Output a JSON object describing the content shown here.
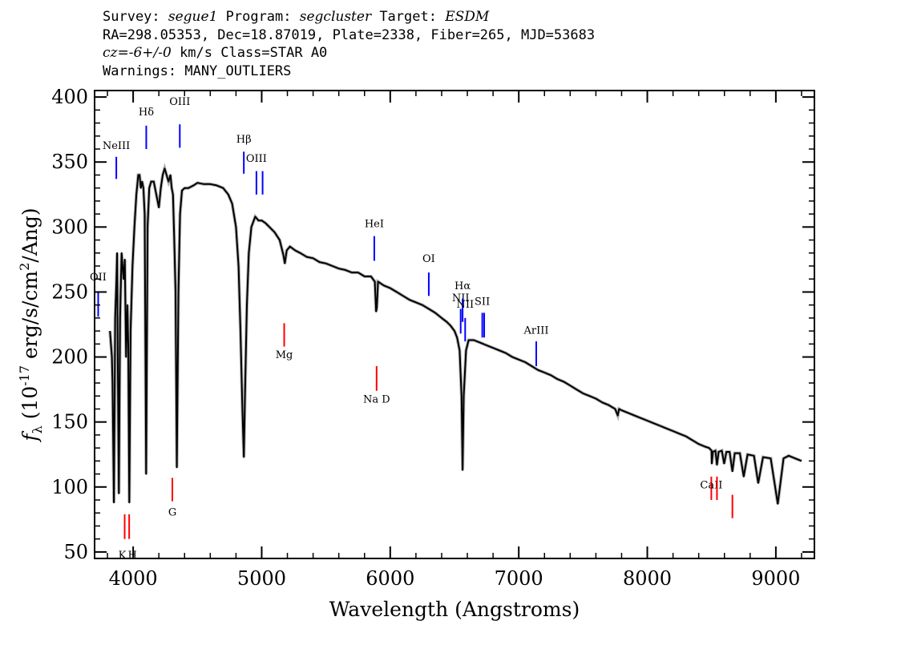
{
  "header": {
    "survey_prefix": "Survey: ",
    "survey": "segue1",
    "program_prefix": " Program: ",
    "program": "segcluster",
    "target_prefix": " Target: ",
    "target": "ESDM",
    "line2": "RA=298.05353, Dec=18.87019, Plate=2338, Fiber=265, MJD=53683",
    "cz_value": "cz=-6+/-0",
    "cz_rest": " km/s Class=STAR A0",
    "warnings": "Warnings: MANY_OUTLIERS"
  },
  "chart_data": {
    "type": "line",
    "xlabel": "Wavelength (Angstroms)",
    "ylabel": "f_λ (10^-17 erg/s/cm^2/Ang)",
    "xlim": [
      3700,
      9300
    ],
    "ylim": [
      45,
      405
    ],
    "x_ticks": [
      4000,
      5000,
      6000,
      7000,
      8000,
      9000
    ],
    "x_tick_labels": [
      "4000",
      "5000",
      "6000",
      "7000",
      "8000",
      "9000"
    ],
    "y_ticks": [
      50,
      100,
      150,
      200,
      250,
      300,
      350,
      400
    ],
    "y_tick_labels": [
      "50",
      "100",
      "150",
      "200",
      "250",
      "300",
      "350",
      "400"
    ],
    "series": [
      {
        "color": "#000000",
        "points": [
          [
            3820,
            220
          ],
          [
            3835,
            200
          ],
          [
            3840,
            180
          ],
          [
            3850,
            88
          ],
          [
            3860,
            230
          ],
          [
            3870,
            260
          ],
          [
            3875,
            280
          ],
          [
            3880,
            200
          ],
          [
            3889,
            95
          ],
          [
            3898,
            230
          ],
          [
            3910,
            280
          ],
          [
            3925,
            260
          ],
          [
            3935,
            275
          ],
          [
            3945,
            200
          ],
          [
            3955,
            240
          ],
          [
            3962,
            210
          ],
          [
            3970,
            88
          ],
          [
            3980,
            220
          ],
          [
            3995,
            270
          ],
          [
            4010,
            300
          ],
          [
            4025,
            325
          ],
          [
            4040,
            340
          ],
          [
            4050,
            340
          ],
          [
            4060,
            330
          ],
          [
            4070,
            335
          ],
          [
            4080,
            330
          ],
          [
            4090,
            310
          ],
          [
            4101,
            110
          ],
          [
            4112,
            300
          ],
          [
            4125,
            330
          ],
          [
            4140,
            335
          ],
          [
            4160,
            335
          ],
          [
            4180,
            325
          ],
          [
            4200,
            315
          ],
          [
            4215,
            330
          ],
          [
            4230,
            340
          ],
          [
            4245,
            345
          ],
          [
            4260,
            340
          ],
          [
            4275,
            335
          ],
          [
            4290,
            340
          ],
          [
            4300,
            330
          ],
          [
            4310,
            325
          ],
          [
            4320,
            290
          ],
          [
            4330,
            250
          ],
          [
            4340,
            115
          ],
          [
            4352,
            250
          ],
          [
            4365,
            310
          ],
          [
            4380,
            328
          ],
          [
            4400,
            330
          ],
          [
            4430,
            330
          ],
          [
            4470,
            332
          ],
          [
            4500,
            334
          ],
          [
            4550,
            333
          ],
          [
            4600,
            333
          ],
          [
            4650,
            332
          ],
          [
            4700,
            330
          ],
          [
            4740,
            325
          ],
          [
            4770,
            318
          ],
          [
            4800,
            300
          ],
          [
            4820,
            270
          ],
          [
            4835,
            220
          ],
          [
            4850,
            160
          ],
          [
            4861,
            123
          ],
          [
            4870,
            170
          ],
          [
            4885,
            240
          ],
          [
            4900,
            280
          ],
          [
            4920,
            300
          ],
          [
            4950,
            308
          ],
          [
            4975,
            305
          ],
          [
            5000,
            305
          ],
          [
            5030,
            303
          ],
          [
            5060,
            300
          ],
          [
            5100,
            296
          ],
          [
            5140,
            290
          ],
          [
            5170,
            278
          ],
          [
            5180,
            272
          ],
          [
            5195,
            282
          ],
          [
            5220,
            285
          ],
          [
            5260,
            282
          ],
          [
            5300,
            280
          ],
          [
            5350,
            277
          ],
          [
            5400,
            276
          ],
          [
            5450,
            273
          ],
          [
            5500,
            272
          ],
          [
            5550,
            270
          ],
          [
            5600,
            268
          ],
          [
            5650,
            267
          ],
          [
            5700,
            265
          ],
          [
            5750,
            265
          ],
          [
            5800,
            262
          ],
          [
            5850,
            262
          ],
          [
            5880,
            258
          ],
          [
            5890,
            235
          ],
          [
            5896,
            238
          ],
          [
            5905,
            258
          ],
          [
            5950,
            255
          ],
          [
            6000,
            253
          ],
          [
            6050,
            250
          ],
          [
            6100,
            247
          ],
          [
            6150,
            244
          ],
          [
            6200,
            242
          ],
          [
            6250,
            240
          ],
          [
            6300,
            237
          ],
          [
            6350,
            234
          ],
          [
            6400,
            230
          ],
          [
            6440,
            227
          ],
          [
            6470,
            224
          ],
          [
            6500,
            220
          ],
          [
            6520,
            215
          ],
          [
            6540,
            205
          ],
          [
            6555,
            170
          ],
          [
            6563,
            113
          ],
          [
            6572,
            170
          ],
          [
            6590,
            205
          ],
          [
            6610,
            213
          ],
          [
            6650,
            213
          ],
          [
            6700,
            211
          ],
          [
            6750,
            209
          ],
          [
            6800,
            207
          ],
          [
            6850,
            205
          ],
          [
            6900,
            203
          ],
          [
            6950,
            200
          ],
          [
            7000,
            198
          ],
          [
            7050,
            196
          ],
          [
            7100,
            193
          ],
          [
            7150,
            190
          ],
          [
            7200,
            188
          ],
          [
            7250,
            186
          ],
          [
            7300,
            183
          ],
          [
            7350,
            181
          ],
          [
            7400,
            178
          ],
          [
            7450,
            175
          ],
          [
            7500,
            172
          ],
          [
            7550,
            170
          ],
          [
            7600,
            168
          ],
          [
            7650,
            165
          ],
          [
            7700,
            163
          ],
          [
            7750,
            160
          ],
          [
            7770,
            155
          ],
          [
            7780,
            160
          ],
          [
            7800,
            159
          ],
          [
            7850,
            157
          ],
          [
            7900,
            155
          ],
          [
            7950,
            153
          ],
          [
            8000,
            151
          ],
          [
            8050,
            149
          ],
          [
            8100,
            147
          ],
          [
            8150,
            145
          ],
          [
            8200,
            143
          ],
          [
            8250,
            141
          ],
          [
            8300,
            139
          ],
          [
            8350,
            136
          ],
          [
            8400,
            133
          ],
          [
            8450,
            131
          ],
          [
            8480,
            130
          ],
          [
            8500,
            128
          ],
          [
            8502,
            118
          ],
          [
            8510,
            127
          ],
          [
            8530,
            128
          ],
          [
            8542,
            117
          ],
          [
            8555,
            127
          ],
          [
            8580,
            128
          ],
          [
            8598,
            118
          ],
          [
            8615,
            127
          ],
          [
            8640,
            127
          ],
          [
            8662,
            112
          ],
          [
            8680,
            126
          ],
          [
            8720,
            126
          ],
          [
            8750,
            108
          ],
          [
            8780,
            125
          ],
          [
            8830,
            124
          ],
          [
            8863,
            103
          ],
          [
            8900,
            123
          ],
          [
            8960,
            122
          ],
          [
            9015,
            87
          ],
          [
            9060,
            122
          ],
          [
            9100,
            124
          ],
          [
            9150,
            122
          ],
          [
            9200,
            120
          ]
        ]
      }
    ],
    "line_markers": [
      {
        "label": "OII",
        "wavelength": 3728,
        "label_y": 259,
        "y_top": 250,
        "y_bottom": 231,
        "color": "#0000ff"
      },
      {
        "label": "NeIII",
        "wavelength": 3869,
        "label_y": 360,
        "y_top": 354,
        "y_bottom": 337,
        "color": "#0000ff"
      },
      {
        "label": "Hδ",
        "wavelength": 4102,
        "label_y": 386,
        "y_top": 378,
        "y_bottom": 360,
        "color": "#0000ff"
      },
      {
        "label": "OIII",
        "wavelength": 4363,
        "label_y": 394,
        "y_top": 379,
        "y_bottom": 361,
        "color": "#0000ff"
      },
      {
        "label": "Hβ",
        "wavelength": 4861,
        "label_y": 365,
        "y_top": 358,
        "y_bottom": 341,
        "color": "#0000ff"
      },
      {
        "label": "OIII",
        "wavelength": 4959,
        "label_y": 350,
        "y_top": 343,
        "y_bottom": 325,
        "color": "#0000ff"
      },
      {
        "label": "OIII",
        "wavelength": 5007,
        "label_y": 350,
        "y_top": 343,
        "y_bottom": 325,
        "color": "#0000ff"
      },
      {
        "label": "HeI",
        "wavelength": 5876,
        "label_y": 300,
        "y_top": 293,
        "y_bottom": 274,
        "color": "#0000ff"
      },
      {
        "label": "OI",
        "wavelength": 6300,
        "label_y": 273,
        "y_top": 265,
        "y_bottom": 247,
        "color": "#0000ff"
      },
      {
        "label": "NII",
        "wavelength": 6548,
        "label_y": 243,
        "y_top": 237,
        "y_bottom": 218,
        "color": "#0000ff"
      },
      {
        "label": "Hα",
        "wavelength": 6563,
        "label_y": 252,
        "y_top": 245,
        "y_bottom": 227,
        "color": "#0000ff"
      },
      {
        "label": "NII",
        "wavelength": 6583,
        "label_y": 238,
        "y_top": 230,
        "y_bottom": 212,
        "color": "#0000ff"
      },
      {
        "label": "SII",
        "wavelength": 6716,
        "label_y": 240,
        "y_top": 234,
        "y_bottom": 215,
        "color": "#0000ff"
      },
      {
        "label": "SII",
        "wavelength": 6731,
        "label_y": 240,
        "y_top": 234,
        "y_bottom": 215,
        "color": "#0000ff"
      },
      {
        "label": "ArIII",
        "wavelength": 7136,
        "label_y": 218,
        "y_top": 212,
        "y_bottom": 193,
        "color": "#0000ff"
      },
      {
        "label": "K",
        "wavelength": 3934,
        "label_y": 45,
        "y_top": 79,
        "y_bottom": 60,
        "color": "#ff0000"
      },
      {
        "label": "H",
        "wavelength": 3969,
        "label_y": 45,
        "y_top": 79,
        "y_bottom": 60,
        "color": "#ff0000"
      },
      {
        "label": "G",
        "wavelength": 4305,
        "label_y": 78,
        "y_top": 107,
        "y_bottom": 89,
        "color": "#ff0000"
      },
      {
        "label": "Mg",
        "wavelength": 5175,
        "label_y": 199,
        "y_top": 226,
        "y_bottom": 208,
        "color": "#ff0000"
      },
      {
        "label": "Na D",
        "wavelength": 5894,
        "label_y": 165,
        "y_top": 193,
        "y_bottom": 174,
        "color": "#ff0000"
      },
      {
        "label": "CaII",
        "wavelength": 8498,
        "label_y": 99,
        "y_top": 108,
        "y_bottom": 90,
        "color": "#ff0000"
      },
      {
        "label": "CaII",
        "wavelength": 8542,
        "label_y": 99,
        "y_top": 108,
        "y_bottom": 90,
        "color": "#ff0000"
      },
      {
        "label": "CaII",
        "wavelength": 8662,
        "label_y": 99,
        "y_top": 94,
        "y_bottom": 76,
        "color": "#ff0000"
      }
    ],
    "grid": false,
    "legend": "none"
  }
}
